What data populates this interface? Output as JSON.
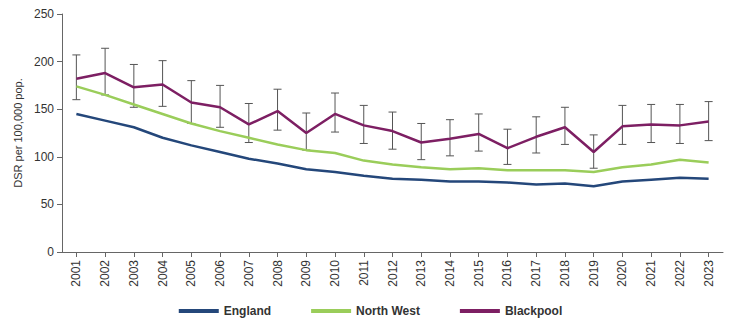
{
  "chart_data": {
    "type": "line",
    "y_label": "DSR per 100,000 pop.",
    "categories": [
      "2001",
      "2002",
      "2003",
      "2004",
      "2005",
      "2006",
      "2007",
      "2008",
      "2009",
      "2010",
      "2011",
      "2012",
      "2013",
      "2014",
      "2015",
      "2016",
      "2017",
      "2018",
      "2019",
      "2020",
      "2021",
      "2022",
      "2023"
    ],
    "series": [
      {
        "name": "England",
        "color": "#24477a",
        "values": [
          145,
          138,
          131,
          120,
          112,
          105,
          98,
          93,
          87,
          84,
          80,
          77,
          76,
          74,
          74,
          73,
          71,
          72,
          69,
          74,
          76,
          78,
          77
        ]
      },
      {
        "name": "North West",
        "color": "#9acd5a",
        "values": [
          174,
          165,
          155,
          145,
          135,
          127,
          120,
          113,
          107,
          104,
          96,
          92,
          89,
          87,
          88,
          86,
          86,
          86,
          84,
          89,
          92,
          97,
          94
        ]
      },
      {
        "name": "Blackpool",
        "color": "#7d1f63",
        "values": [
          182,
          188,
          173,
          176,
          157,
          152,
          134,
          148,
          125,
          145,
          133,
          127,
          115,
          119,
          124,
          109,
          121,
          131,
          105,
          132,
          134,
          133,
          137
        ],
        "lower": [
          160,
          165,
          152,
          153,
          135,
          131,
          115,
          128,
          107,
          126,
          114,
          108,
          97,
          101,
          106,
          92,
          104,
          113,
          88,
          113,
          115,
          114,
          117
        ],
        "upper": [
          207,
          214,
          197,
          201,
          180,
          175,
          156,
          171,
          146,
          167,
          154,
          147,
          135,
          139,
          145,
          129,
          142,
          152,
          123,
          154,
          155,
          155,
          158
        ]
      }
    ],
    "ylim": [
      0,
      250
    ],
    "yticks": [
      0,
      50,
      100,
      150,
      200,
      250
    ],
    "grid": false,
    "legend": "bottom"
  }
}
